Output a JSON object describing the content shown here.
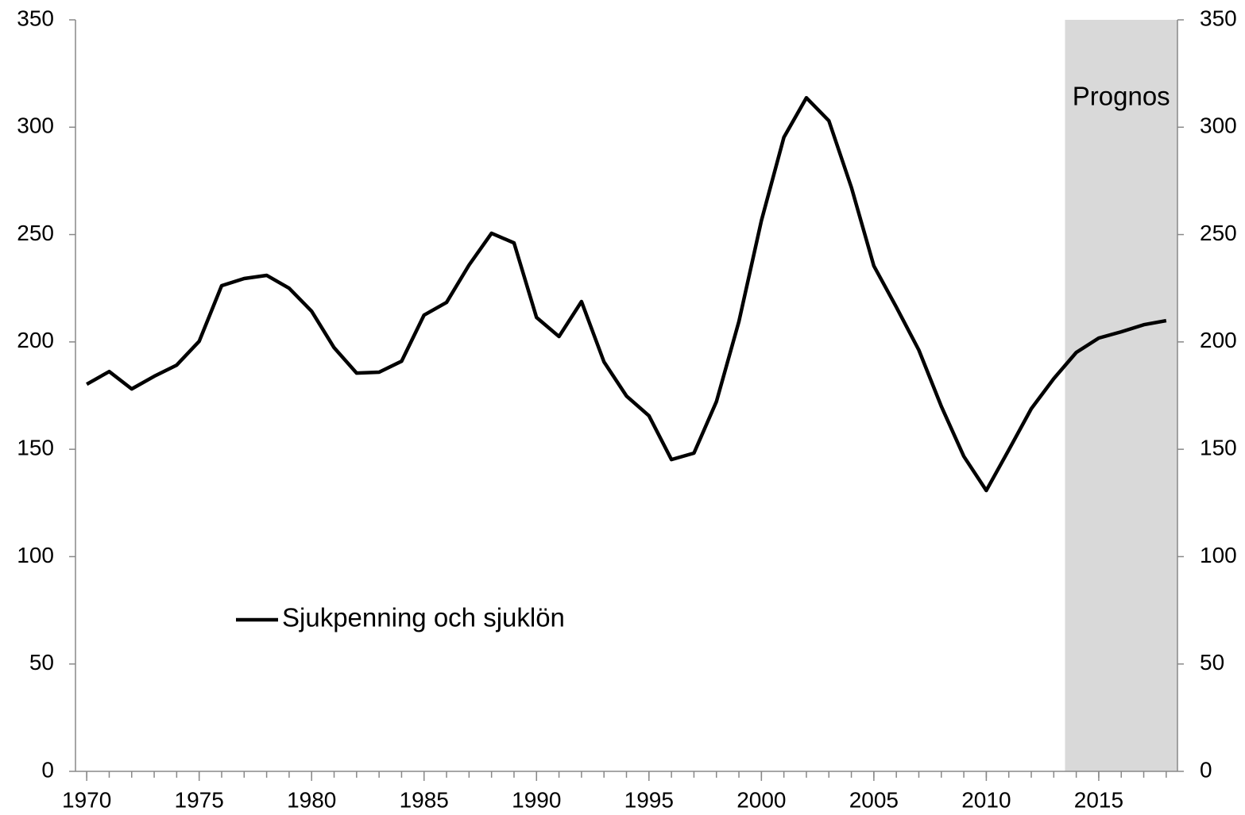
{
  "chart_data": {
    "type": "line",
    "x": [
      1970,
      1971,
      1972,
      1973,
      1974,
      1975,
      1976,
      1977,
      1978,
      1979,
      1980,
      1981,
      1982,
      1983,
      1984,
      1985,
      1986,
      1987,
      1988,
      1989,
      1990,
      1991,
      1992,
      1993,
      1994,
      1995,
      1996,
      1997,
      1998,
      1999,
      2000,
      2001,
      2002,
      2003,
      2004,
      2005,
      2006,
      2007,
      2008,
      2009,
      2010,
      2011,
      2012,
      2013,
      2014,
      2015,
      2016,
      2017,
      2018
    ],
    "series": [
      {
        "name": "Sjukpenning och sjuklön",
        "color": "#000000",
        "values": [
          180.3,
          186.2,
          178.1,
          184,
          189.2,
          200.3,
          226.2,
          229.5,
          231,
          225,
          214.3,
          197.3,
          185.5,
          185.9,
          191,
          212.5,
          218.4,
          235.8,
          250.6,
          246.1,
          211.4,
          202.5,
          218.8,
          190.7,
          174.8,
          165.6,
          145.2,
          148.2,
          172.2,
          209.5,
          256.5,
          295.3,
          313.7,
          303,
          272,
          235.4,
          216.2,
          196.2,
          170,
          146.7,
          130.8,
          149.7,
          168.9,
          182.9,
          195.1,
          201.8,
          204.7,
          208,
          209.9
        ]
      }
    ],
    "xlim": [
      1969.5,
      2018.5
    ],
    "xticks": [
      1970,
      1975,
      1980,
      1985,
      1990,
      1995,
      2000,
      2005,
      2010,
      2015
    ],
    "ylim": [
      0,
      350
    ],
    "yticks": [
      0,
      50,
      100,
      150,
      200,
      250,
      300,
      350
    ],
    "y2lim": [
      0,
      350
    ],
    "y2ticks": [
      0,
      50,
      100,
      150,
      200,
      250,
      300,
      350
    ],
    "shade": {
      "from": 2013.5,
      "to": 2018.5,
      "color": "#d9d9d9",
      "label": "Prognos"
    },
    "legend": "lower-left"
  }
}
